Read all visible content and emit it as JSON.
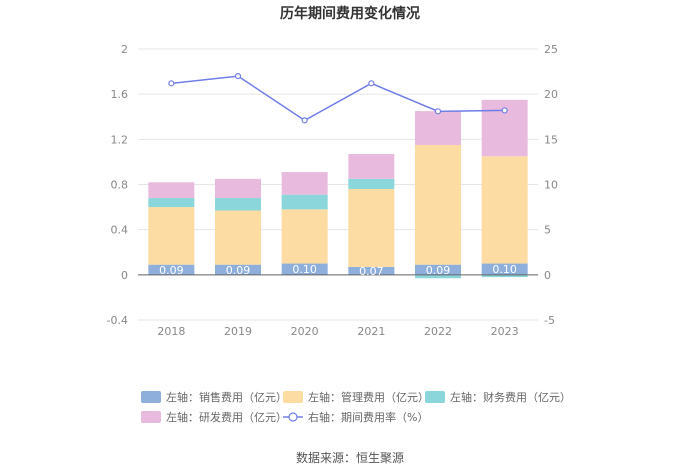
{
  "title": "历年期间费用变化情况",
  "source": "数据来源：恒生聚源",
  "chart_data": {
    "type": "bar",
    "stacked": true,
    "categories": [
      "2018",
      "2019",
      "2020",
      "2021",
      "2022",
      "2023"
    ],
    "left_axis": {
      "min": -0.4,
      "max": 2,
      "ticks": [
        "-0.4",
        "0",
        "0.4",
        "0.8",
        "1.2",
        "1.6",
        "2"
      ]
    },
    "right_axis": {
      "min": -5,
      "max": 25,
      "ticks": [
        "-5",
        "0",
        "5",
        "10",
        "15",
        "20",
        "25"
      ]
    },
    "grid": true,
    "legend_position": "bottom",
    "series": [
      {
        "name": "左轴：销售费用（亿元）",
        "axis": "left",
        "color": "#8eaedb",
        "values": [
          0.09,
          0.09,
          0.1,
          0.07,
          0.09,
          0.1
        ],
        "labels": [
          "0.09",
          "0.09",
          "0.10",
          "0.07",
          "0.09",
          "0.10"
        ]
      },
      {
        "name": "左轴：管理费用（亿元）",
        "axis": "left",
        "color": "#fddca3",
        "values": [
          0.51,
          0.48,
          0.48,
          0.69,
          1.06,
          0.95
        ]
      },
      {
        "name": "左轴：财务费用（亿元）",
        "axis": "left",
        "color": "#8ad6da",
        "values": [
          0.08,
          0.11,
          0.13,
          0.09,
          -0.03,
          -0.02
        ]
      },
      {
        "name": "左轴：研发费用（亿元）",
        "axis": "left",
        "color": "#e8bbde",
        "values": [
          0.14,
          0.17,
          0.2,
          0.22,
          0.3,
          0.5
        ]
      },
      {
        "name": "右轴：期间费用率（%）",
        "axis": "right",
        "type": "line",
        "color": "#6f7ee8",
        "values": [
          21.2,
          22.0,
          17.1,
          21.2,
          18.1,
          18.2
        ]
      }
    ]
  }
}
